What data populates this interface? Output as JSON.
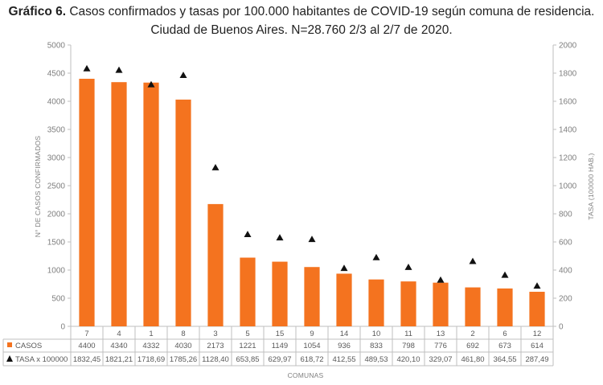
{
  "title": {
    "prefix": "Gráfico 6.",
    "line1": "Casos confirmados y tasas por 100.000 habitantes de COVID-19 según comuna de residencia.",
    "line2": "Ciudad de Buenos Aires. N=28.760 2/3 al 2/7 de 2020."
  },
  "colors": {
    "bar": "#f4731f",
    "marker": "#111111",
    "axis": "#bfbfbf"
  },
  "chart_data": {
    "type": "bar",
    "categories": [
      "7",
      "4",
      "1",
      "8",
      "3",
      "5",
      "15",
      "9",
      "14",
      "10",
      "11",
      "13",
      "2",
      "6",
      "12"
    ],
    "series": [
      {
        "name": "CASOS",
        "kind": "bar",
        "axis": "left",
        "values": [
          4400,
          4340,
          4332,
          4030,
          2173,
          1221,
          1149,
          1054,
          936,
          833,
          798,
          776,
          692,
          673,
          614
        ],
        "labels": [
          "4400",
          "4340",
          "4332",
          "4030",
          "2173",
          "1221",
          "1149",
          "1054",
          "936",
          "833",
          "798",
          "776",
          "692",
          "673",
          "614"
        ]
      },
      {
        "name": "TASA x 100000",
        "kind": "marker-triangle",
        "axis": "right",
        "values": [
          1832.45,
          1821.21,
          1718.69,
          1785.26,
          1128.4,
          653.85,
          629.97,
          618.72,
          412.55,
          489.53,
          420.1,
          329.07,
          461.8,
          364.55,
          287.49
        ],
        "labels": [
          "1832,45",
          "1821,21",
          "1718,69",
          "1785,26",
          "1128,40",
          "653,85",
          "629,97",
          "618,72",
          "412,55",
          "489,53",
          "420,10",
          "329,07",
          "461,80",
          "364,55",
          "287,49"
        ]
      }
    ],
    "xlabel": "COMUNAS",
    "ylabel": "N° DE CASOS CONFIRMADOS",
    "y2label": "TASA (100000 HAB.)",
    "ylim": [
      0,
      5000
    ],
    "y2lim": [
      0,
      2000
    ],
    "yticks": [
      "0",
      "500",
      "1000",
      "1500",
      "2000",
      "2500",
      "3000",
      "3500",
      "4000",
      "4500",
      "5000"
    ],
    "y2ticks": [
      "0",
      "200",
      "400",
      "600",
      "800",
      "1000",
      "1200",
      "1400",
      "1600",
      "1800",
      "2000"
    ],
    "grid": false,
    "legend": "data-table"
  }
}
